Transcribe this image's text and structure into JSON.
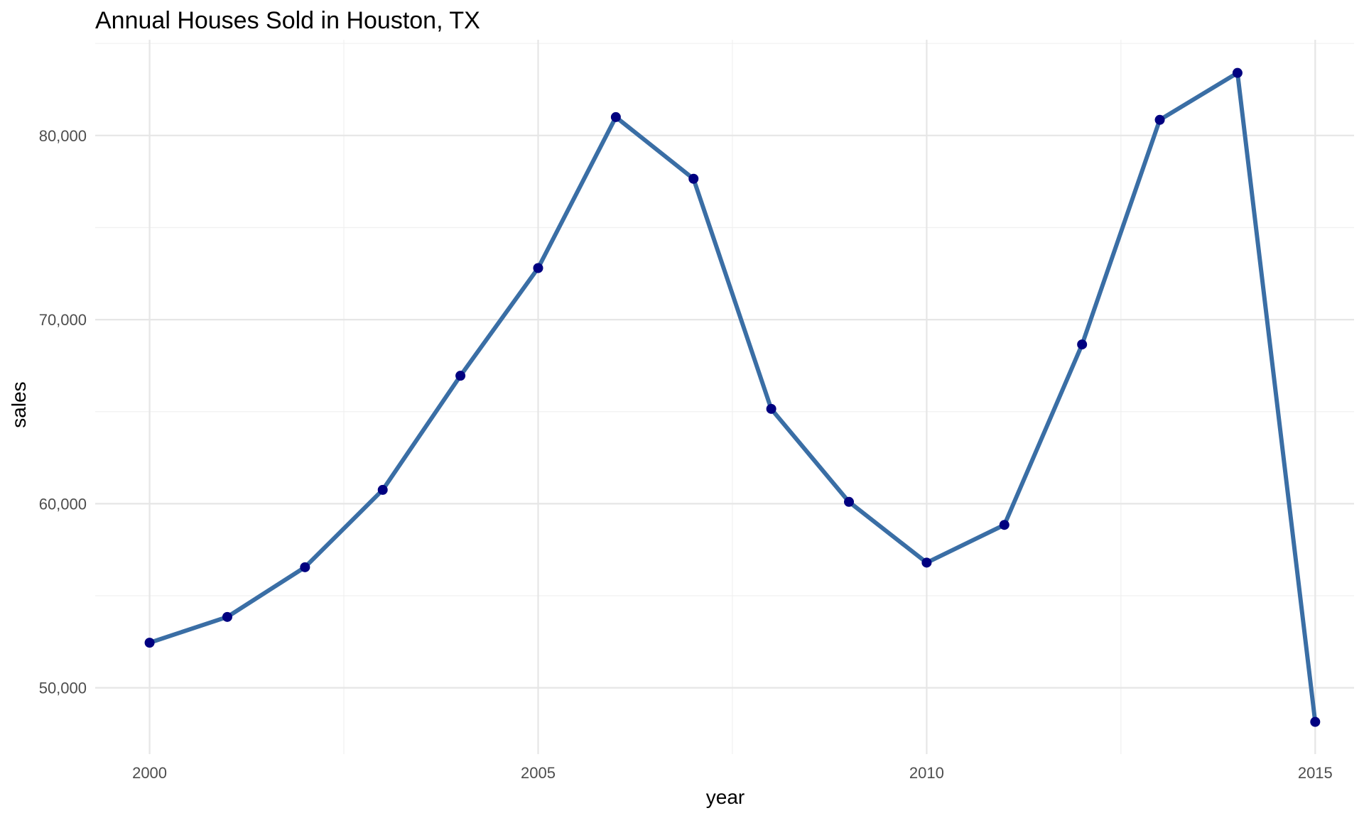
{
  "chart_data": {
    "type": "line",
    "title": "Annual Houses Sold in Houston, TX",
    "xlabel": "year",
    "ylabel": "sales",
    "xlim": [
      1999.3,
      2015.5
    ],
    "ylim": [
      46400,
      85200
    ],
    "x_ticks": [
      2000,
      2005,
      2010,
      2015
    ],
    "x_tick_labels": [
      "2000",
      "2005",
      "2010",
      "2015"
    ],
    "y_ticks": [
      50000,
      60000,
      70000,
      80000
    ],
    "y_tick_labels": [
      "50,000",
      "60,000",
      "70,000",
      "80,000"
    ],
    "grid": true,
    "line_color": "#3a6ea5",
    "point_color": "#000080",
    "series": [
      {
        "x": [
          2000,
          2001,
          2002,
          2003,
          2004,
          2005,
          2006,
          2007,
          2008,
          2009,
          2010,
          2011,
          2012,
          2013,
          2014,
          2015
        ],
        "values": [
          52450,
          53850,
          56550,
          60750,
          66950,
          72800,
          81000,
          77650,
          65150,
          60100,
          56800,
          58850,
          68650,
          80850,
          83400,
          48150
        ]
      }
    ]
  }
}
